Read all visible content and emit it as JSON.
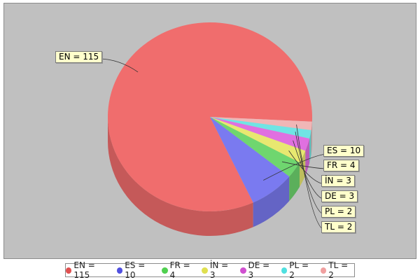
{
  "chart_data": {
    "type": "pie",
    "style": "3d",
    "slices": [
      {
        "label": "EN",
        "value": 115,
        "color": "#f06d6d",
        "display": "EN = 115"
      },
      {
        "label": "ES",
        "value": 10,
        "color": "#7a7af0",
        "display": "ES = 10"
      },
      {
        "label": "FR",
        "value": 4,
        "color": "#6fd66f",
        "display": "FR = 4"
      },
      {
        "label": "İN",
        "value": 3,
        "color": "#e8e870",
        "display": "İN = 3"
      },
      {
        "label": "DE",
        "value": 3,
        "color": "#e070e0",
        "display": "DE = 3"
      },
      {
        "label": "PL",
        "value": 2,
        "color": "#70e4e4",
        "display": "PL = 2"
      },
      {
        "label": "TL",
        "value": 2,
        "color": "#f0b6b6",
        "display": "TL = 2"
      }
    ],
    "legend_position": "bottom",
    "labels": "callouts"
  }
}
